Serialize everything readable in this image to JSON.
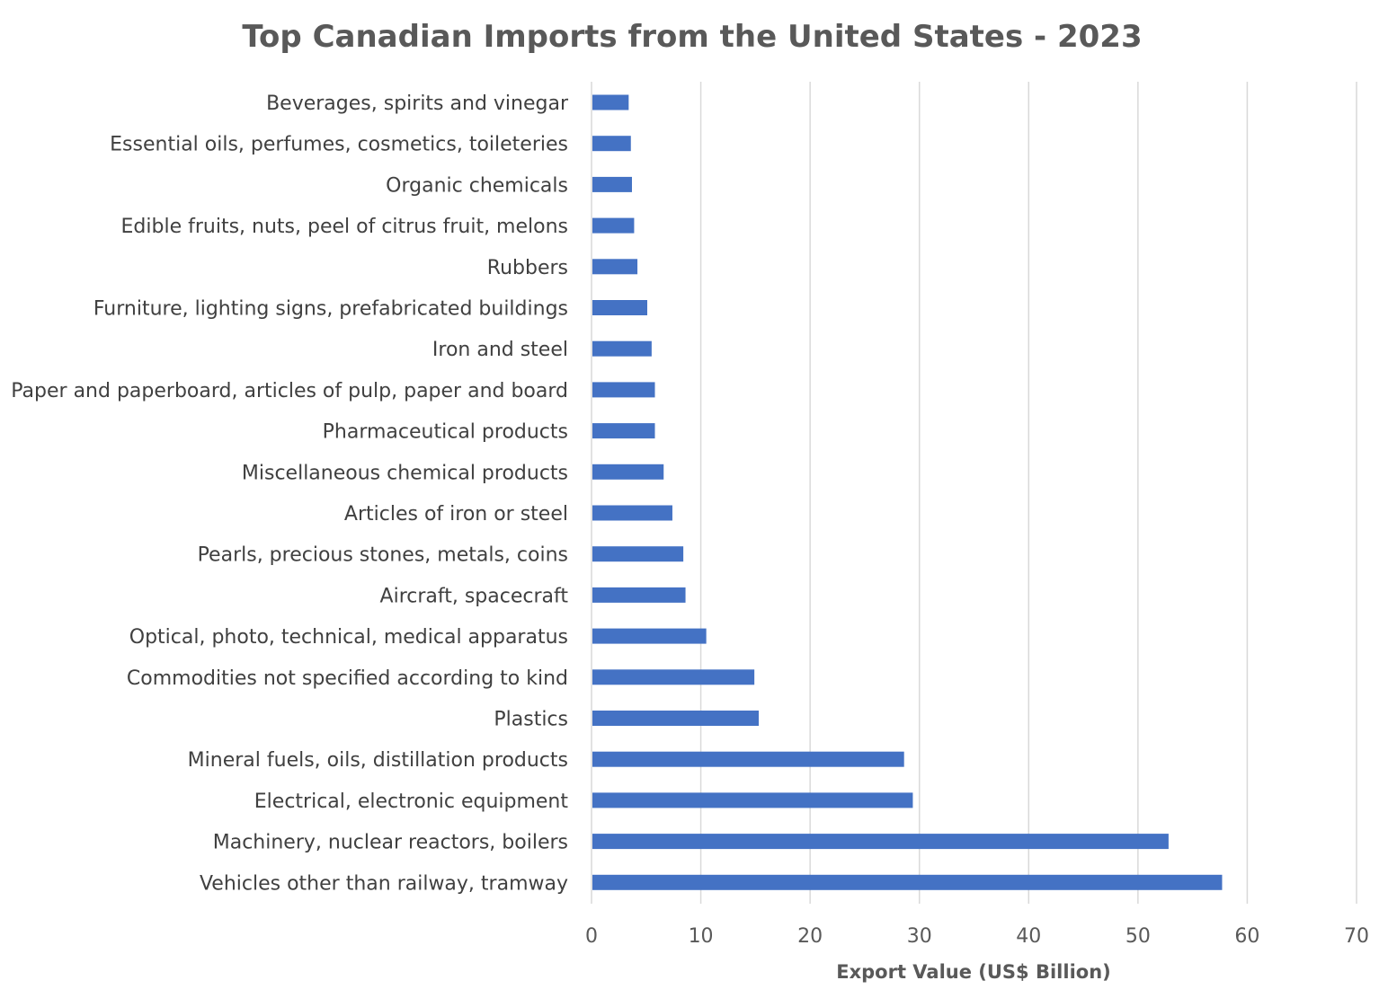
{
  "chart_data": {
    "type": "bar",
    "orientation": "horizontal",
    "title": "Top Canadian Imports from the United States - 2023",
    "xlabel": "Export Value (US$ Billion)",
    "ylabel": "",
    "xlim": [
      0,
      70
    ],
    "xticks": [
      0,
      10,
      20,
      30,
      40,
      50,
      60,
      70
    ],
    "grid": "vertical",
    "legend": "none",
    "bar_color": "#4472c4",
    "categories": [
      "Beverages, spirits and vinegar",
      "Essential oils, perfumes, cosmetics, toileteries",
      "Organic chemicals",
      "Edible fruits, nuts, peel of citrus fruit, melons",
      "Rubbers",
      "Furniture, lighting signs, prefabricated buildings",
      "Iron and steel",
      "Paper and paperboard, articles of pulp, paper and board",
      "Pharmaceutical products",
      "Miscellaneous chemical products",
      "Articles of iron or steel",
      "Pearls, precious stones, metals, coins",
      "Aircraft, spacecraft",
      "Optical, photo, technical, medical apparatus",
      "Commodities not specified according to kind",
      "Plastics",
      "Mineral fuels, oils, distillation products",
      "Electrical, electronic equipment",
      "Machinery, nuclear reactors, boilers",
      "Vehicles other than railway, tramway"
    ],
    "values": [
      3.4,
      3.6,
      3.7,
      3.9,
      4.2,
      5.1,
      5.5,
      5.8,
      5.8,
      6.6,
      7.4,
      8.4,
      8.6,
      10.5,
      14.9,
      15.3,
      28.6,
      29.4,
      52.8,
      57.7
    ]
  }
}
